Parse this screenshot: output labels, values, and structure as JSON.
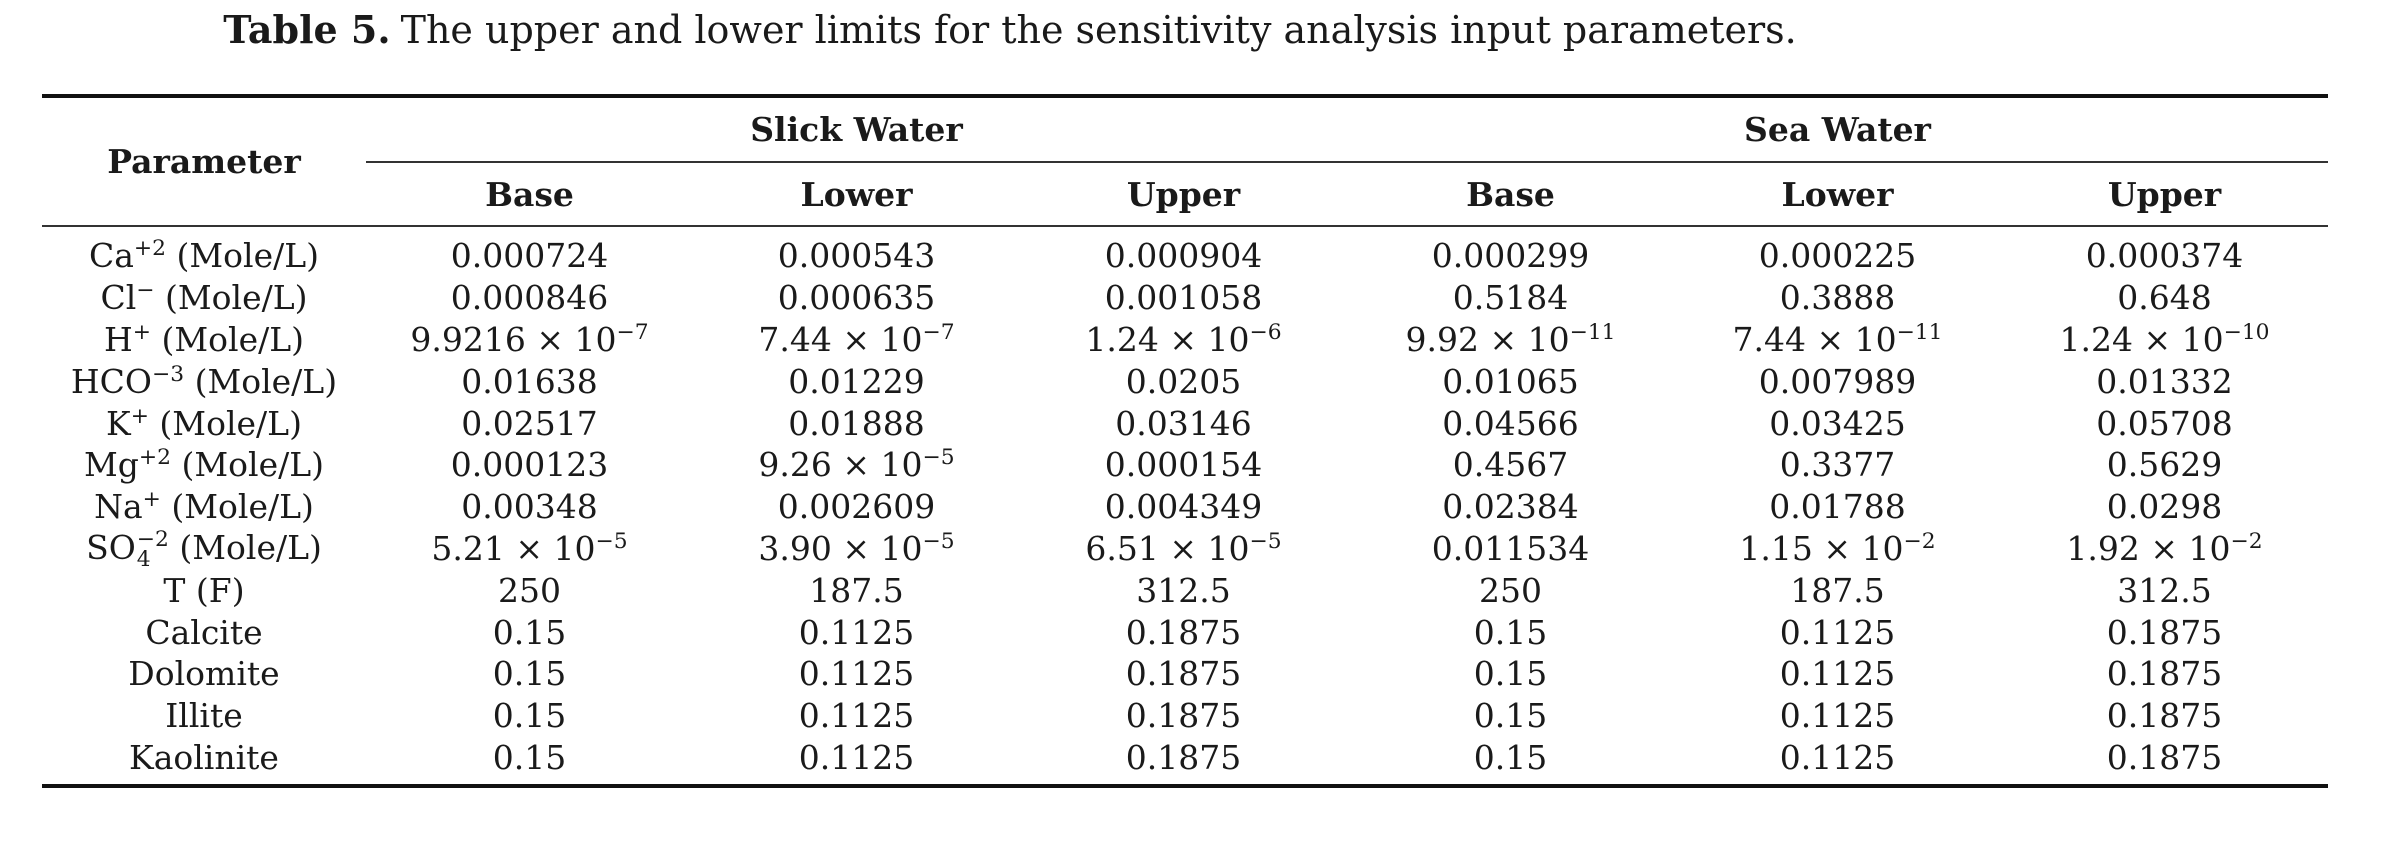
{
  "caption": {
    "label": "Table 5.",
    "text": "The upper and lower limits for the sensitivity analysis input parameters."
  },
  "table": {
    "param_header": "Parameter",
    "groups": [
      "Slick Water",
      "Sea Water"
    ],
    "subheaders": [
      "Base",
      "Lower",
      "Upper",
      "Base",
      "Lower",
      "Upper"
    ],
    "rows": [
      {
        "label": {
          "base": "Ca",
          "sup": "+2",
          "unit": " (Mole/L)"
        },
        "values": [
          {
            "t": "0.000724"
          },
          {
            "t": "0.000543"
          },
          {
            "t": "0.000904"
          },
          {
            "t": "0.000299"
          },
          {
            "t": "0.000225"
          },
          {
            "t": "0.000374"
          }
        ]
      },
      {
        "label": {
          "base": "Cl",
          "sup": "−",
          "unit": " (Mole/L)"
        },
        "values": [
          {
            "t": "0.000846"
          },
          {
            "t": "0.000635"
          },
          {
            "t": "0.001058"
          },
          {
            "t": "0.5184"
          },
          {
            "t": "0.3888"
          },
          {
            "t": "0.648"
          }
        ]
      },
      {
        "label": {
          "base": "H",
          "sup": "+",
          "unit": " (Mole/L)"
        },
        "values": [
          {
            "m": "9.9216",
            "e": "−7"
          },
          {
            "m": "7.44",
            "e": "−7"
          },
          {
            "m": "1.24",
            "e": "−6"
          },
          {
            "m": "9.92",
            "e": "−11"
          },
          {
            "m": "7.44",
            "e": "−11"
          },
          {
            "m": "1.24",
            "e": "−10"
          }
        ]
      },
      {
        "label": {
          "base": "HCO",
          "sup": "−3",
          "unit": " (Mole/L)"
        },
        "values": [
          {
            "t": "0.01638"
          },
          {
            "t": "0.01229"
          },
          {
            "t": "0.0205"
          },
          {
            "t": "0.01065"
          },
          {
            "t": "0.007989"
          },
          {
            "t": "0.01332"
          }
        ]
      },
      {
        "label": {
          "base": "K",
          "sup": "+",
          "unit": " (Mole/L)"
        },
        "values": [
          {
            "t": "0.02517"
          },
          {
            "t": "0.01888"
          },
          {
            "t": "0.03146"
          },
          {
            "t": "0.04566"
          },
          {
            "t": "0.03425"
          },
          {
            "t": "0.05708"
          }
        ]
      },
      {
        "label": {
          "base": "Mg",
          "sup": "+2",
          "unit": " (Mole/L)"
        },
        "values": [
          {
            "t": "0.000123"
          },
          {
            "m": "9.26",
            "e": "−5"
          },
          {
            "t": "0.000154"
          },
          {
            "t": "0.4567"
          },
          {
            "t": "0.3377"
          },
          {
            "t": "0.5629"
          }
        ]
      },
      {
        "label": {
          "base": "Na",
          "sup": "+",
          "unit": " (Mole/L)"
        },
        "values": [
          {
            "t": "0.00348"
          },
          {
            "t": "0.002609"
          },
          {
            "t": "0.004349"
          },
          {
            "t": "0.02384"
          },
          {
            "t": "0.01788"
          },
          {
            "t": "0.0298"
          }
        ]
      },
      {
        "label": {
          "base": "SO",
          "sup": "−2",
          "sub": "4",
          "unit": " (Mole/L)"
        },
        "values": [
          {
            "m": "5.21",
            "e": "−5"
          },
          {
            "m": "3.90",
            "e": "−5"
          },
          {
            "m": "6.51",
            "e": "−5"
          },
          {
            "t": "0.011534"
          },
          {
            "m": "1.15",
            "e": "−2"
          },
          {
            "m": "1.92",
            "e": "−2"
          }
        ]
      },
      {
        "label": {
          "base": "T (F)"
        },
        "values": [
          {
            "t": "250"
          },
          {
            "t": "187.5"
          },
          {
            "t": "312.5"
          },
          {
            "t": "250"
          },
          {
            "t": "187.5"
          },
          {
            "t": "312.5"
          }
        ]
      },
      {
        "label": {
          "base": "Calcite"
        },
        "values": [
          {
            "t": "0.15"
          },
          {
            "t": "0.1125"
          },
          {
            "t": "0.1875"
          },
          {
            "t": "0.15"
          },
          {
            "t": "0.1125"
          },
          {
            "t": "0.1875"
          }
        ]
      },
      {
        "label": {
          "base": "Dolomite"
        },
        "values": [
          {
            "t": "0.15"
          },
          {
            "t": "0.1125"
          },
          {
            "t": "0.1875"
          },
          {
            "t": "0.15"
          },
          {
            "t": "0.1125"
          },
          {
            "t": "0.1875"
          }
        ]
      },
      {
        "label": {
          "base": "Illite"
        },
        "values": [
          {
            "t": "0.15"
          },
          {
            "t": "0.1125"
          },
          {
            "t": "0.1875"
          },
          {
            "t": "0.15"
          },
          {
            "t": "0.1125"
          },
          {
            "t": "0.1875"
          }
        ]
      },
      {
        "label": {
          "base": "Kaolinite"
        },
        "values": [
          {
            "t": "0.15"
          },
          {
            "t": "0.1125"
          },
          {
            "t": "0.1875"
          },
          {
            "t": "0.15"
          },
          {
            "t": "0.1125"
          },
          {
            "t": "0.1875"
          }
        ]
      }
    ]
  }
}
